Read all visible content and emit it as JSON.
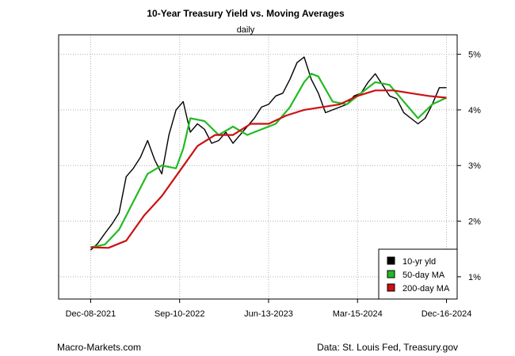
{
  "chart_data": {
    "type": "line",
    "title": "10-Year Treasury Yield vs. Moving Averages",
    "subtitle": "daily",
    "xlabel": "",
    "ylabel": "",
    "x_tick_labels": [
      "Dec-08-2021",
      "Sep-10-2022",
      "Jun-13-2023",
      "Mar-15-2024",
      "Dec-16-2024"
    ],
    "x_tick_positions": [
      0,
      0.25,
      0.5,
      0.75,
      1.0
    ],
    "y_tick_labels": [
      "1%",
      "2%",
      "3%",
      "4%",
      "5%"
    ],
    "y_tick_values": [
      1,
      2,
      3,
      4,
      5
    ],
    "ylim": [
      0.6,
      5.35
    ],
    "xlim": [
      -0.09,
      1.03
    ],
    "grid": true,
    "legend_position": "bottom-right",
    "series": [
      {
        "name": "10-yr yld",
        "color": "#000000",
        "x": [
          0,
          0.02,
          0.04,
          0.06,
          0.08,
          0.1,
          0.12,
          0.14,
          0.16,
          0.18,
          0.2,
          0.22,
          0.24,
          0.26,
          0.28,
          0.3,
          0.32,
          0.34,
          0.36,
          0.38,
          0.4,
          0.42,
          0.44,
          0.46,
          0.48,
          0.5,
          0.52,
          0.54,
          0.56,
          0.58,
          0.6,
          0.62,
          0.64,
          0.66,
          0.68,
          0.7,
          0.72,
          0.74,
          0.76,
          0.78,
          0.8,
          0.82,
          0.84,
          0.86,
          0.88,
          0.9,
          0.92,
          0.94,
          0.96,
          0.98,
          1.0
        ],
        "values": [
          1.48,
          1.6,
          1.78,
          1.95,
          2.15,
          2.8,
          2.95,
          3.15,
          3.45,
          3.1,
          2.85,
          3.55,
          4.0,
          4.15,
          3.6,
          3.75,
          3.65,
          3.4,
          3.45,
          3.6,
          3.4,
          3.55,
          3.7,
          3.85,
          4.05,
          4.1,
          4.25,
          4.3,
          4.55,
          4.85,
          4.95,
          4.55,
          4.3,
          3.95,
          4.0,
          4.05,
          4.1,
          4.25,
          4.3,
          4.5,
          4.65,
          4.45,
          4.25,
          4.2,
          3.95,
          3.85,
          3.75,
          3.85,
          4.1,
          4.4,
          4.4
        ]
      },
      {
        "name": "50-day MA",
        "color": "#22bb22",
        "x": [
          0,
          0.04,
          0.08,
          0.12,
          0.16,
          0.2,
          0.24,
          0.26,
          0.28,
          0.32,
          0.36,
          0.4,
          0.44,
          0.48,
          0.52,
          0.56,
          0.6,
          0.62,
          0.64,
          0.68,
          0.72,
          0.76,
          0.8,
          0.84,
          0.88,
          0.92,
          0.96,
          1.0
        ],
        "values": [
          1.53,
          1.58,
          1.85,
          2.35,
          2.85,
          3.0,
          2.95,
          3.3,
          3.85,
          3.8,
          3.55,
          3.7,
          3.55,
          3.65,
          3.75,
          4.05,
          4.5,
          4.65,
          4.6,
          4.15,
          4.1,
          4.3,
          4.5,
          4.45,
          4.15,
          3.85,
          4.1,
          4.22
        ]
      },
      {
        "name": "200-day MA",
        "color": "#cc1111",
        "x": [
          0,
          0.05,
          0.1,
          0.15,
          0.2,
          0.25,
          0.3,
          0.35,
          0.4,
          0.45,
          0.5,
          0.55,
          0.6,
          0.65,
          0.7,
          0.75,
          0.8,
          0.85,
          0.9,
          0.95,
          1.0
        ],
        "values": [
          1.53,
          1.52,
          1.65,
          2.1,
          2.45,
          2.9,
          3.35,
          3.55,
          3.55,
          3.75,
          3.75,
          3.9,
          4.0,
          4.05,
          4.1,
          4.25,
          4.35,
          4.35,
          4.3,
          4.25,
          4.22
        ]
      }
    ]
  },
  "footer": {
    "left": "Macro-Markets.com",
    "right": "Data: St. Louis Fed, Treasury.gov"
  }
}
